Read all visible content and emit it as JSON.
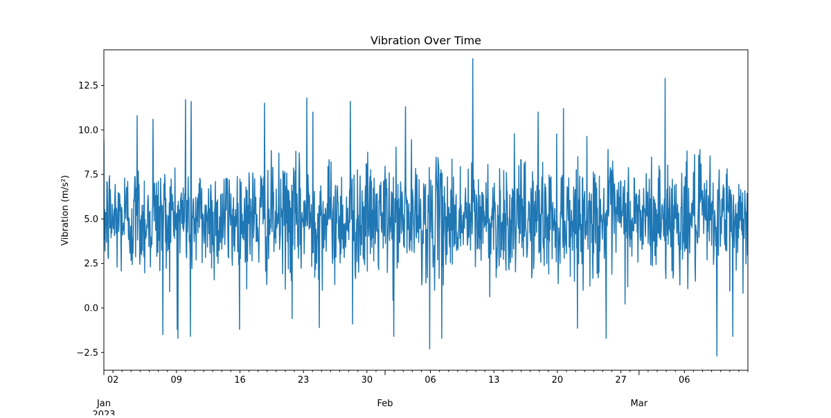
{
  "chart_data": {
    "type": "line",
    "title": "Vibration Over Time",
    "xlabel": "",
    "ylabel": "Vibration (m/s²)",
    "x_range": [
      "2023-01-01",
      "2023-03-13"
    ],
    "ylim": [
      -3.5,
      14.5
    ],
    "y_ticks": [
      -2.5,
      0.0,
      2.5,
      5.0,
      7.5,
      10.0,
      12.5
    ],
    "x_major_ticks": [
      {
        "date": "2023-01-02",
        "label": "02"
      },
      {
        "date": "2023-01-09",
        "label": "09"
      },
      {
        "date": "2023-01-16",
        "label": "16"
      },
      {
        "date": "2023-01-23",
        "label": "23"
      },
      {
        "date": "2023-01-30",
        "label": "30"
      },
      {
        "date": "2023-02-06",
        "label": "06"
      },
      {
        "date": "2023-02-13",
        "label": "13"
      },
      {
        "date": "2023-02-20",
        "label": "20"
      },
      {
        "date": "2023-02-27",
        "label": "27"
      },
      {
        "date": "2023-03-06",
        "label": "06"
      }
    ],
    "x_month_labels": [
      {
        "date": "2023-01-01",
        "label": "Jan",
        "year": "2023"
      },
      {
        "date": "2023-02-01",
        "label": "Feb",
        "year": ""
      },
      {
        "date": "2023-03-01",
        "label": "Mar",
        "year": ""
      }
    ],
    "grid": false,
    "series": [
      {
        "color": "#1f77b4",
        "sampling": "hourly",
        "mean": 5.0,
        "typical_range": [
          1.5,
          8.5
        ],
        "peaks": [
          {
            "x": "2023-01-04T16:00",
            "y": 10.8
          },
          {
            "x": "2023-01-06T10:00",
            "y": 10.6
          },
          {
            "x": "2023-01-10T00:00",
            "y": 11.7
          },
          {
            "x": "2023-01-10T15:00",
            "y": 11.6
          },
          {
            "x": "2023-01-18T17:00",
            "y": 11.5
          },
          {
            "x": "2023-01-23T09:00",
            "y": 11.8
          },
          {
            "x": "2023-01-24T01:00",
            "y": 11.0
          },
          {
            "x": "2023-01-28T04:00",
            "y": 11.6
          },
          {
            "x": "2023-02-03T06:00",
            "y": 11.3
          },
          {
            "x": "2023-02-10T16:00",
            "y": 14.0
          },
          {
            "x": "2023-02-17T21:00",
            "y": 11.0
          },
          {
            "x": "2023-02-20T16:00",
            "y": 11.2
          },
          {
            "x": "2023-03-03T21:00",
            "y": 12.9
          }
        ],
        "troughs": [
          {
            "x": "2023-01-07T12:00",
            "y": -1.5
          },
          {
            "x": "2023-01-09T04:00",
            "y": -1.7
          },
          {
            "x": "2023-01-10T13:00",
            "y": -1.6
          },
          {
            "x": "2023-01-21T18:00",
            "y": -0.6
          },
          {
            "x": "2023-01-24T18:00",
            "y": -1.1
          },
          {
            "x": "2023-01-28T10:00",
            "y": -0.9
          },
          {
            "x": "2023-02-01T23:00",
            "y": -1.6
          },
          {
            "x": "2023-02-05T22:00",
            "y": -2.3
          },
          {
            "x": "2023-02-07T06:00",
            "y": -1.7
          },
          {
            "x": "2023-02-25T09:00",
            "y": -1.7
          },
          {
            "x": "2023-03-09T14:00",
            "y": -2.7
          },
          {
            "x": "2023-03-11T08:00",
            "y": -1.6
          }
        ]
      }
    ]
  }
}
